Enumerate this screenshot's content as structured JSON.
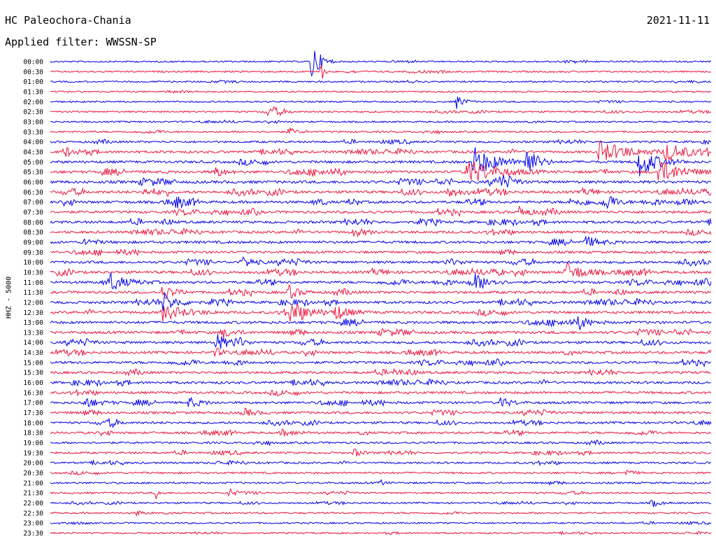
{
  "header": {
    "station": "HC Paleochora-Chania",
    "date": "2021-11-11",
    "filter": "Applied filter: WWSSN-SP"
  },
  "chart_data": {
    "type": "line",
    "title": "HC Paleochora-Chania",
    "date": "2021-11-11",
    "filter": "Applied filter: WWSSN-SP",
    "ylabel": "HHZ - 5000",
    "xlabel": "",
    "colors": {
      "even": "#0000e6",
      "odd": "#e8143c"
    },
    "row_labels": [
      "00:00",
      "00:30",
      "01:00",
      "01:30",
      "02:00",
      "02:30",
      "03:00",
      "03:30",
      "04:00",
      "04:30",
      "05:00",
      "05:30",
      "06:00",
      "06:30",
      "07:00",
      "07:30",
      "08:00",
      "08:30",
      "09:00",
      "09:30",
      "10:00",
      "10:30",
      "11:00",
      "11:30",
      "12:00",
      "12:30",
      "13:00",
      "13:30",
      "14:00",
      "14:30",
      "15:00",
      "15:30",
      "16:00",
      "16:30",
      "17:00",
      "17:30",
      "18:00",
      "18:30",
      "19:00",
      "19:30",
      "20:00",
      "20:30",
      "21:00",
      "21:30",
      "22:00",
      "22:30",
      "23:00",
      "23:30"
    ],
    "noise_level": [
      0.25,
      0.3,
      0.25,
      0.25,
      0.25,
      0.3,
      0.3,
      0.4,
      0.5,
      0.7,
      0.8,
      0.9,
      0.9,
      0.85,
      0.85,
      0.8,
      0.8,
      0.75,
      0.8,
      0.7,
      0.8,
      0.85,
      0.8,
      0.8,
      0.8,
      0.8,
      0.85,
      0.85,
      0.8,
      0.75,
      0.75,
      0.75,
      0.75,
      0.7,
      0.7,
      0.7,
      0.6,
      0.6,
      0.5,
      0.5,
      0.45,
      0.4,
      0.4,
      0.35,
      0.3,
      0.3,
      0.25,
      0.25
    ],
    "events": [
      {
        "row": 0,
        "t": 0.395,
        "amp": 30,
        "dur": 0.012
      },
      {
        "row": 1,
        "t": 0.41,
        "amp": 14,
        "dur": 0.004
      },
      {
        "row": 4,
        "t": 0.615,
        "amp": 10,
        "dur": 0.01
      },
      {
        "row": 5,
        "t": 0.33,
        "amp": 9,
        "dur": 0.015
      },
      {
        "row": 7,
        "t": 0.36,
        "amp": 6,
        "dur": 0.01
      },
      {
        "row": 9,
        "t": 0.02,
        "amp": 8,
        "dur": 0.015
      },
      {
        "row": 9,
        "t": 0.83,
        "amp": 16,
        "dur": 0.04
      },
      {
        "row": 9,
        "t": 0.93,
        "amp": 12,
        "dur": 0.04
      },
      {
        "row": 10,
        "t": 0.64,
        "amp": 22,
        "dur": 0.03
      },
      {
        "row": 10,
        "t": 0.72,
        "amp": 24,
        "dur": 0.015
      },
      {
        "row": 10,
        "t": 0.89,
        "amp": 22,
        "dur": 0.025
      },
      {
        "row": 11,
        "t": 0.63,
        "amp": 18,
        "dur": 0.04
      },
      {
        "row": 11,
        "t": 0.92,
        "amp": 18,
        "dur": 0.03
      },
      {
        "row": 11,
        "t": 0.25,
        "amp": 10,
        "dur": 0.01
      },
      {
        "row": 12,
        "t": 0.68,
        "amp": 8,
        "dur": 0.015
      },
      {
        "row": 13,
        "t": 0.6,
        "amp": 8,
        "dur": 0.02
      },
      {
        "row": 14,
        "t": 0.19,
        "amp": 7,
        "dur": 0.01
      },
      {
        "row": 14,
        "t": 0.84,
        "amp": 9,
        "dur": 0.015
      },
      {
        "row": 15,
        "t": 0.71,
        "amp": 8,
        "dur": 0.015
      },
      {
        "row": 17,
        "t": 0.46,
        "amp": 7,
        "dur": 0.015
      },
      {
        "row": 18,
        "t": 0.05,
        "amp": 6,
        "dur": 0.015
      },
      {
        "row": 18,
        "t": 0.81,
        "amp": 8,
        "dur": 0.02
      },
      {
        "row": 20,
        "t": 0.29,
        "amp": 9,
        "dur": 0.015
      },
      {
        "row": 20,
        "t": 0.6,
        "amp": 6,
        "dur": 0.015
      },
      {
        "row": 21,
        "t": 0.78,
        "amp": 14,
        "dur": 0.025
      },
      {
        "row": 22,
        "t": 0.09,
        "amp": 11,
        "dur": 0.025
      },
      {
        "row": 22,
        "t": 0.64,
        "amp": 10,
        "dur": 0.02
      },
      {
        "row": 23,
        "t": 0.17,
        "amp": 12,
        "dur": 0.015
      },
      {
        "row": 23,
        "t": 0.36,
        "amp": 10,
        "dur": 0.015
      },
      {
        "row": 24,
        "t": 0.17,
        "amp": 14,
        "dur": 0.02
      },
      {
        "row": 25,
        "t": 0.17,
        "amp": 12,
        "dur": 0.03
      },
      {
        "row": 25,
        "t": 0.36,
        "amp": 14,
        "dur": 0.03
      },
      {
        "row": 25,
        "t": 0.43,
        "amp": 10,
        "dur": 0.02
      },
      {
        "row": 26,
        "t": 0.8,
        "amp": 8,
        "dur": 0.015
      },
      {
        "row": 27,
        "t": 0.26,
        "amp": 8,
        "dur": 0.015
      },
      {
        "row": 28,
        "t": 0.25,
        "amp": 14,
        "dur": 0.015
      },
      {
        "row": 28,
        "t": 0.28,
        "amp": 10,
        "dur": 0.01
      },
      {
        "row": 29,
        "t": 0.25,
        "amp": 7,
        "dur": 0.01
      },
      {
        "row": 31,
        "t": 0.52,
        "amp": 6,
        "dur": 0.01
      },
      {
        "row": 34,
        "t": 0.05,
        "amp": 8,
        "dur": 0.02
      },
      {
        "row": 34,
        "t": 0.21,
        "amp": 8,
        "dur": 0.015
      },
      {
        "row": 34,
        "t": 0.68,
        "amp": 8,
        "dur": 0.015
      },
      {
        "row": 35,
        "t": 0.29,
        "amp": 7,
        "dur": 0.015
      },
      {
        "row": 36,
        "t": 0.09,
        "amp": 5,
        "dur": 0.01
      },
      {
        "row": 37,
        "t": 0.35,
        "amp": 5,
        "dur": 0.02
      },
      {
        "row": 39,
        "t": 0.46,
        "amp": 6,
        "dur": 0.01
      },
      {
        "row": 41,
        "t": 0.87,
        "amp": 5,
        "dur": 0.01
      },
      {
        "row": 42,
        "t": 0.5,
        "amp": 5,
        "dur": 0.005
      },
      {
        "row": 43,
        "t": 0.16,
        "amp": 8,
        "dur": 0.005
      },
      {
        "row": 43,
        "t": 0.27,
        "amp": 8,
        "dur": 0.005
      },
      {
        "row": 44,
        "t": 0.91,
        "amp": 6,
        "dur": 0.01
      },
      {
        "row": 45,
        "t": 0.13,
        "amp": 4,
        "dur": 0.01
      }
    ]
  }
}
